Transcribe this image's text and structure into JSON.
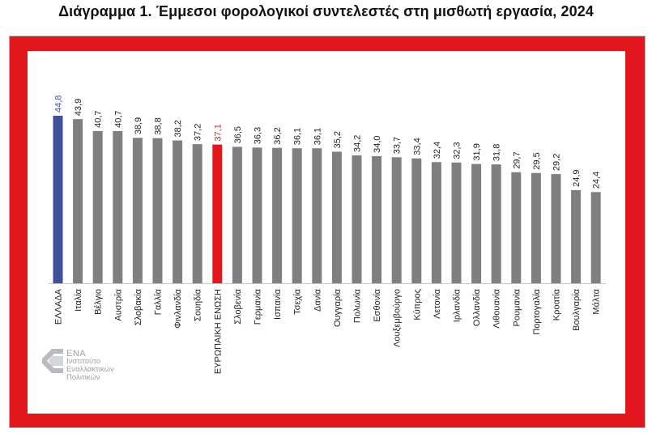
{
  "title": "Διάγραμμα 1. Έμμεσοι φορολογικοί συντελεστές στη μισθωτή εργασία, 2024",
  "colors": {
    "frame": "#e3161d",
    "bar_default": "#7f7f7f",
    "bar_greece": "#3f4f9c",
    "bar_eu": "#e3161d",
    "label_greece": "#3f4f9c",
    "label_eu": "#e3161d",
    "label_default": "#222222"
  },
  "logo": {
    "line1": "ΕΝΑ",
    "line2": "Ινστιτούτο",
    "line3": "Εναλλακτικών",
    "line4": "Πολιτικών"
  },
  "chart_data": {
    "type": "bar",
    "title": "Διάγραμμα 1. Έμμεσοι φορολογικοί συντελεστές στη μισθωτή εργασία, 2024",
    "xlabel": "",
    "ylabel": "",
    "grid": false,
    "legend": "none",
    "ylim": [
      0,
      44.8
    ],
    "categories": [
      "ΕΛΛΑΔΑ",
      "Ιταλία",
      "Βέλγιο",
      "Αυστρία",
      "Σλοβακία",
      "Γαλλία",
      "Φινλανδία",
      "Σουηδία",
      "ΕΥΡΩΠΑΙΚΗ ΕΝΩΣΗ",
      "Σλοβενία",
      "Γερμανία",
      "Ισπανία",
      "Τσεχία",
      "Δανία",
      "Ουγγαρία",
      "Πολωνία",
      "Εσθονία",
      "Λουξεμβούργο",
      "Κύπρος",
      "Λετονία",
      "Ιρλανδία",
      "Ολλανδία",
      "Λιθουανία",
      "Ρουμανία",
      "Πορτογαλία",
      "Κροατία",
      "Βουλγαρία",
      "Μάλτα"
    ],
    "values": [
      44.8,
      43.9,
      40.7,
      40.7,
      38.9,
      38.8,
      38.2,
      37.2,
      37.1,
      36.5,
      36.3,
      36.2,
      36.1,
      36.1,
      35.2,
      34.2,
      34.0,
      33.7,
      33.4,
      32.4,
      32.3,
      31.9,
      31.8,
      29.7,
      29.5,
      29.2,
      24.9,
      24.4
    ],
    "value_labels": [
      "44,8",
      "43,9",
      "40,7",
      "40,7",
      "38,9",
      "38,8",
      "38,2",
      "37,2",
      "37,1",
      "36,5",
      "36,3",
      "36,2",
      "36,1",
      "36,1",
      "35,2",
      "34,2",
      "34,0",
      "33,7",
      "33,4",
      "32,4",
      "32,3",
      "31,9",
      "31,8",
      "29,7",
      "29,5",
      "29,2",
      "24,9",
      "24,4"
    ],
    "highlights": {
      "ΕΛΛΑΔΑ": "greece",
      "ΕΥΡΩΠΑΙΚΗ ΕΝΩΣΗ": "eu"
    }
  }
}
